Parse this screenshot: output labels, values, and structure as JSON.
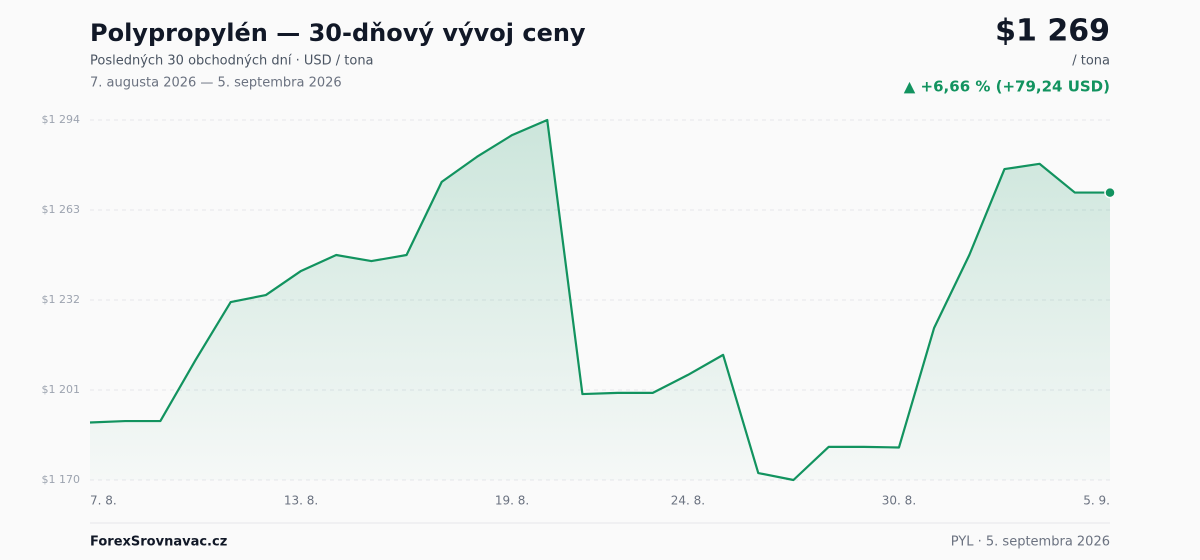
{
  "chart_data": {
    "type": "line",
    "title": "Polypropylén — 30-dňový vývoj ceny",
    "subtitle": "Posledných 30 obchodných dní · USD / tona",
    "date_range": "7. augusta 2026 — 5. septembra 2026",
    "price": "$1 269",
    "unit": "/ tona",
    "change": "▲ +6,66 % (+79,24 USD)",
    "source": "ForexSrovnavac.cz",
    "footer_note": "PYL · 5. septembra 2026",
    "categories": [
      "7. 8.",
      null,
      null,
      null,
      null,
      null,
      "13. 8.",
      null,
      null,
      null,
      null,
      null,
      "19. 8.",
      null,
      null,
      null,
      null,
      "24. 8.",
      null,
      null,
      null,
      null,
      null,
      "30. 8.",
      null,
      null,
      null,
      null,
      null,
      "5. 9."
    ],
    "series": [
      {
        "name": "Polypropylén",
        "color": "#12935f",
        "values": [
          1189.8,
          1190.3,
          1190.3,
          1211.3,
          1231.3,
          1233.7,
          1242.0,
          1247.5,
          1245.4,
          1247.5,
          1272.7,
          1281.3,
          1288.8,
          1294.0,
          1199.6,
          1200.0,
          1200.0,
          1206.2,
          1213.1,
          1172.4,
          1170.0,
          1181.4,
          1181.4,
          1181.2,
          1222.4,
          1247.5,
          1277.1,
          1278.9,
          1269.0,
          1269.0
        ]
      }
    ],
    "ylim": [
      1170,
      1294
    ],
    "yticks": [
      {
        "value": 1170,
        "label": "$1 170"
      },
      {
        "value": 1201,
        "label": "$1 201"
      },
      {
        "value": 1232,
        "label": "$1 232"
      },
      {
        "value": 1263,
        "label": "$1 263"
      },
      {
        "value": 1294,
        "label": "$1 294"
      }
    ],
    "grid": true
  }
}
